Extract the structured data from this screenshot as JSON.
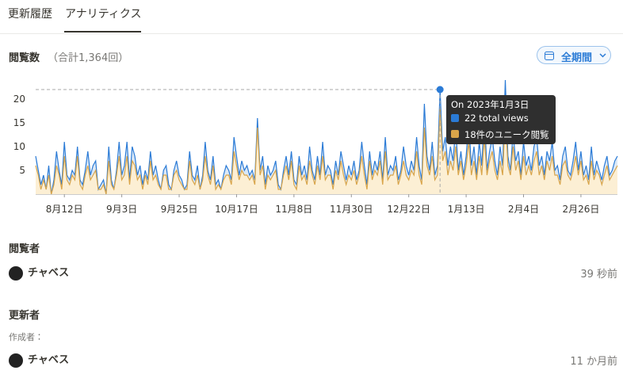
{
  "tabs": [
    "更新履歴",
    "アナリティクス"
  ],
  "analytics": {
    "title": "閲覧数",
    "total": "（合計1,364回）",
    "period_button": "全期間",
    "chart": {
      "type": "area",
      "categories": [
        null,
        null,
        null,
        null,
        null,
        null,
        null,
        null,
        null,
        null,
        null,
        "8月12日",
        null,
        null,
        null,
        null,
        null,
        null,
        null,
        null,
        null,
        null,
        null,
        null,
        null,
        null,
        null,
        null,
        null,
        null,
        null,
        null,
        null,
        "9月3日",
        null,
        null,
        null,
        null,
        null,
        null,
        null,
        null,
        null,
        null,
        null,
        null,
        null,
        null,
        null,
        null,
        null,
        null,
        null,
        null,
        null,
        "9月25日",
        null,
        null,
        null,
        null,
        null,
        null,
        null,
        null,
        null,
        null,
        null,
        null,
        null,
        null,
        null,
        null,
        null,
        null,
        null,
        null,
        null,
        "10月17日",
        null,
        null,
        null,
        null,
        null,
        null,
        null,
        null,
        null,
        null,
        null,
        null,
        null,
        null,
        null,
        null,
        null,
        null,
        null,
        null,
        null,
        "11月8日",
        null,
        null,
        null,
        null,
        null,
        null,
        null,
        null,
        null,
        null,
        null,
        null,
        null,
        null,
        null,
        null,
        null,
        null,
        null,
        null,
        null,
        "11月30日",
        null,
        null,
        null,
        null,
        null,
        null,
        null,
        null,
        null,
        null,
        null,
        null,
        null,
        null,
        null,
        null,
        null,
        null,
        null,
        null,
        null,
        "12月22日",
        null,
        null,
        null,
        null,
        null,
        null,
        null,
        null,
        null,
        null,
        null,
        null,
        null,
        null,
        null,
        null,
        null,
        null,
        null,
        null,
        null,
        "1月13日",
        null,
        null,
        null,
        null,
        null,
        null,
        null,
        null,
        null,
        null,
        null,
        null,
        null,
        null,
        null,
        null,
        null,
        null,
        null,
        null,
        null,
        "2月4日",
        null,
        null,
        null,
        null,
        null,
        null,
        null,
        null,
        null,
        null,
        null,
        null,
        null,
        null,
        null,
        null,
        null,
        null,
        null,
        null,
        null,
        "2月26日",
        null,
        null,
        null,
        null,
        null,
        null,
        null,
        null,
        null,
        null,
        null,
        null,
        null,
        null
      ],
      "series": [
        {
          "color": "#2b7bd6",
          "fill": "#dbe8f6",
          "values": [
            8,
            5,
            2,
            4,
            1,
            6,
            0,
            3,
            9,
            5,
            2,
            11,
            4,
            3,
            5,
            4,
            10,
            3,
            2,
            5,
            9,
            4,
            6,
            7,
            1,
            2,
            3,
            0,
            10,
            3,
            1,
            5,
            11,
            4,
            6,
            11,
            3,
            10,
            8,
            4,
            6,
            2,
            5,
            3,
            9,
            4,
            6,
            3,
            1,
            5,
            6,
            2,
            1,
            5,
            7,
            4,
            3,
            1,
            2,
            9,
            4,
            3,
            6,
            1,
            4,
            11,
            5,
            3,
            8,
            2,
            3,
            1,
            4,
            6,
            5,
            3,
            12,
            8,
            4,
            7,
            5,
            6,
            4,
            5,
            3,
            16,
            5,
            8,
            2,
            6,
            4,
            5,
            7,
            2,
            1,
            5,
            8,
            4,
            9,
            3,
            2,
            8,
            4,
            6,
            3,
            10,
            5,
            3,
            8,
            4,
            11,
            4,
            6,
            5,
            2,
            7,
            4,
            9,
            6,
            3,
            6,
            4,
            7,
            3,
            5,
            11,
            6,
            2,
            9,
            4,
            7,
            5,
            9,
            3,
            12,
            4,
            6,
            5,
            8,
            3,
            5,
            10,
            6,
            4,
            7,
            5,
            12,
            6,
            3,
            19,
            8,
            5,
            11,
            4,
            6,
            22,
            9,
            12,
            6,
            10,
            7,
            14,
            5,
            9,
            4,
            8,
            15,
            6,
            10,
            4,
            11,
            6,
            17,
            5,
            9,
            12,
            7,
            4,
            10,
            6,
            24,
            8,
            5,
            13,
            7,
            9,
            4,
            11,
            6,
            8,
            5,
            10,
            12,
            6,
            8,
            4,
            9,
            7,
            11,
            5,
            6,
            3,
            8,
            10,
            5,
            4,
            7,
            11,
            5,
            9,
            4,
            6,
            3,
            10,
            4,
            7,
            5,
            3,
            6,
            8,
            4,
            5,
            7,
            8
          ]
        },
        {
          "color": "#d9a54a",
          "fill": "#fcefd4",
          "values": [
            6,
            4,
            1,
            3,
            1,
            4,
            0,
            2,
            6,
            4,
            1,
            8,
            3,
            2,
            4,
            3,
            8,
            2,
            1,
            4,
            6,
            3,
            4,
            5,
            1,
            1,
            2,
            0,
            7,
            2,
            1,
            4,
            8,
            3,
            4,
            8,
            2,
            7,
            6,
            3,
            4,
            1,
            4,
            2,
            7,
            3,
            4,
            2,
            1,
            4,
            4,
            1,
            1,
            4,
            5,
            3,
            2,
            1,
            1,
            7,
            3,
            2,
            4,
            1,
            3,
            8,
            4,
            2,
            6,
            1,
            2,
            1,
            3,
            4,
            4,
            2,
            9,
            6,
            3,
            5,
            4,
            4,
            3,
            4,
            2,
            14,
            4,
            6,
            1,
            4,
            3,
            4,
            5,
            1,
            1,
            4,
            6,
            3,
            7,
            2,
            1,
            6,
            3,
            4,
            2,
            7,
            4,
            2,
            6,
            3,
            8,
            3,
            4,
            4,
            1,
            5,
            3,
            7,
            4,
            2,
            4,
            3,
            5,
            2,
            4,
            8,
            4,
            1,
            7,
            3,
            5,
            4,
            7,
            2,
            9,
            3,
            4,
            4,
            6,
            2,
            4,
            7,
            4,
            3,
            5,
            4,
            9,
            4,
            2,
            14,
            6,
            4,
            8,
            3,
            4,
            18,
            7,
            9,
            4,
            7,
            5,
            10,
            4,
            7,
            3,
            6,
            11,
            4,
            7,
            3,
            8,
            4,
            12,
            4,
            7,
            9,
            5,
            3,
            7,
            4,
            17,
            6,
            4,
            10,
            5,
            7,
            3,
            8,
            4,
            6,
            4,
            7,
            9,
            4,
            6,
            3,
            7,
            5,
            8,
            4,
            4,
            2,
            6,
            7,
            4,
            3,
            5,
            8,
            4,
            7,
            3,
            4,
            2,
            7,
            3,
            5,
            4,
            2,
            4,
            6,
            3,
            4,
            5,
            6
          ]
        }
      ],
      "ylim": [
        0,
        24
      ],
      "yticks": [
        5,
        10,
        15,
        20
      ]
    },
    "tooltip": {
      "title": "On 2023年1月3日",
      "lines": [
        "22 total views",
        "18件のユニーク閲覧"
      ]
    }
  },
  "viewers": {
    "heading": "閲覧者",
    "items": [
      {
        "name": "チャベス",
        "time": "39 秒前"
      }
    ]
  },
  "updaters": {
    "heading": "更新者",
    "creator_label": "作成者：",
    "items": [
      {
        "name": "チャベス",
        "time": "11 か月前"
      }
    ]
  }
}
